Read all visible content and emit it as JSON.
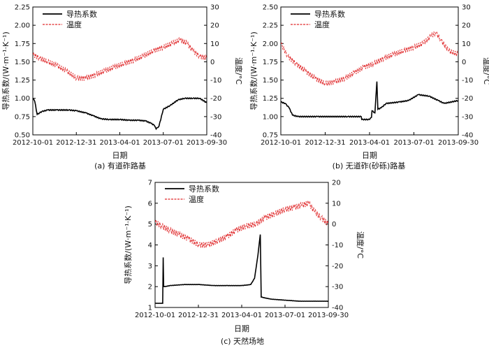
{
  "colors": {
    "conductivity": "#000000",
    "temperature": "#e0292b",
    "axis": "#000000"
  },
  "chart_data": [
    {
      "type": "line",
      "caption": "(a) 有道砟路基",
      "xlabel": "日期",
      "ylabel_left": "导热系数/(W·m⁻¹·K⁻¹)",
      "ylabel_right": "温度/°C",
      "x_ticks": [
        "2012-10-01",
        "2012-12-31",
        "2013-04-01",
        "2013-07-01",
        "2013-09-30"
      ],
      "y_left_range": [
        0.5,
        2.25
      ],
      "y_left_ticks": [
        "0.50",
        "0.75",
        "1.00",
        "1.25",
        "1.50",
        "1.75",
        "2.00",
        "2.25"
      ],
      "y_right_range": [
        -40,
        30
      ],
      "y_right_ticks": [
        "-40",
        "-30",
        "-20",
        "-10",
        "0",
        "10",
        "20",
        "30"
      ],
      "legend": [
        "导热系数",
        "温度"
      ],
      "legend_position": "top-left",
      "series": [
        {
          "name": "导热系数",
          "axis": "left",
          "style": "solid",
          "x": [
            "2012-10-01",
            "2012-10-05",
            "2012-10-10",
            "2012-10-15",
            "2012-10-20",
            "2012-11-01",
            "2012-11-20",
            "2012-12-15",
            "2012-12-31",
            "2013-01-20",
            "2013-02-05",
            "2013-02-20",
            "2013-03-10",
            "2013-04-01",
            "2013-04-20",
            "2013-05-10",
            "2013-05-25",
            "2013-06-05",
            "2013-06-12",
            "2013-06-16",
            "2013-06-22",
            "2013-07-01",
            "2013-07-15",
            "2013-08-01",
            "2013-08-15",
            "2013-09-01",
            "2013-09-15",
            "2013-09-30"
          ],
          "values": [
            1.0,
            0.96,
            0.78,
            0.8,
            0.82,
            0.84,
            0.84,
            0.84,
            0.83,
            0.8,
            0.76,
            0.72,
            0.71,
            0.71,
            0.7,
            0.7,
            0.69,
            0.66,
            0.63,
            0.58,
            0.62,
            0.85,
            0.9,
            0.98,
            1.0,
            1.0,
            1.0,
            0.94
          ]
        },
        {
          "name": "温度",
          "axis": "right",
          "style": "dashed",
          "x": [
            "2012-10-01",
            "2012-10-15",
            "2012-11-01",
            "2012-11-20",
            "2012-12-10",
            "2013-01-01",
            "2013-01-20",
            "2013-02-10",
            "2013-03-01",
            "2013-03-20",
            "2013-04-10",
            "2013-05-01",
            "2013-05-20",
            "2013-06-10",
            "2013-07-01",
            "2013-07-20",
            "2013-08-05",
            "2013-08-20",
            "2013-09-01",
            "2013-09-15",
            "2013-09-30"
          ],
          "values": [
            4,
            2,
            0,
            -2,
            -5,
            -9,
            -9,
            -7,
            -5,
            -3,
            -1,
            1,
            3,
            6,
            8,
            10,
            12,
            10,
            6,
            3,
            2
          ]
        }
      ]
    },
    {
      "type": "line",
      "caption": "(b) 无道砟(砂砾)路基",
      "xlabel": "日期",
      "ylabel_left": "导热系数/(W·m⁻¹·K⁻¹)",
      "ylabel_right": "温度/°C",
      "x_ticks": [
        "2012-10-01",
        "2012-12-31",
        "2013-04-01",
        "2013-07-01",
        "2013-09-30"
      ],
      "y_left_range": [
        0.75,
        2.5
      ],
      "y_left_ticks": [
        "0.75",
        "1.00",
        "1.25",
        "1.50",
        "1.75",
        "2.00",
        "2.25",
        "2.50"
      ],
      "y_right_range": [
        -40,
        30
      ],
      "y_right_ticks": [
        "-40",
        "-30",
        "-20",
        "-10",
        "0",
        "10",
        "20",
        "30"
      ],
      "legend": [
        "导热系数",
        "温度"
      ],
      "legend_position": "top-left",
      "series": [
        {
          "name": "导热系数",
          "axis": "left",
          "style": "solid",
          "x": [
            "2012-10-01",
            "2012-10-10",
            "2012-10-18",
            "2012-10-25",
            "2012-11-05",
            "2012-12-15",
            "2013-02-15",
            "2013-03-15",
            "2013-03-16",
            "2013-04-01",
            "2013-04-05",
            "2013-04-06",
            "2013-04-12",
            "2013-04-16",
            "2013-04-18",
            "2013-04-25",
            "2013-05-05",
            "2013-06-01",
            "2013-06-20",
            "2013-07-10",
            "2013-08-01",
            "2013-08-20",
            "2013-09-01",
            "2013-09-30"
          ],
          "values": [
            1.2,
            1.18,
            1.12,
            1.02,
            1.0,
            1.0,
            1.0,
            1.0,
            0.96,
            0.96,
            0.99,
            1.08,
            1.05,
            1.48,
            1.1,
            1.12,
            1.18,
            1.2,
            1.22,
            1.3,
            1.28,
            1.22,
            1.18,
            1.22
          ]
        },
        {
          "name": "温度",
          "axis": "right",
          "style": "dashed",
          "x": [
            "2012-10-01",
            "2012-10-15",
            "2012-11-01",
            "2012-11-20",
            "2012-12-10",
            "2012-12-31",
            "2013-01-20",
            "2013-02-10",
            "2013-03-01",
            "2013-03-20",
            "2013-04-10",
            "2013-05-01",
            "2013-05-20",
            "2013-06-10",
            "2013-07-01",
            "2013-07-20",
            "2013-08-05",
            "2013-08-15",
            "2013-08-25",
            "2013-09-10",
            "2013-09-30"
          ],
          "values": [
            10,
            3,
            -1,
            -5,
            -9,
            -12,
            -11,
            -9,
            -6,
            -3,
            -1,
            2,
            4,
            6,
            8,
            10,
            14,
            16,
            12,
            6,
            4
          ]
        }
      ]
    },
    {
      "type": "line",
      "caption": "(c) 天然场地",
      "xlabel": "日期",
      "ylabel_left": "导热系数/(W·m⁻¹·K⁻¹)",
      "ylabel_right": "温度/°C",
      "x_ticks": [
        "2012-10-01",
        "2012-12-31",
        "2013-04-01",
        "2013-07-01",
        "2013-09-30"
      ],
      "y_left_range": [
        1,
        7
      ],
      "y_left_ticks": [
        "1",
        "2",
        "3",
        "4",
        "5",
        "6",
        "7"
      ],
      "y_right_range": [
        -40,
        20
      ],
      "y_right_ticks": [
        "-40",
        "-30",
        "-20",
        "-10",
        "0",
        "10",
        "20"
      ],
      "legend": [
        "导热系数",
        "温度"
      ],
      "legend_position": "top-left",
      "series": [
        {
          "name": "导热系数",
          "axis": "left",
          "style": "solid",
          "x": [
            "2012-10-01",
            "2012-10-17",
            "2012-10-18",
            "2012-10-19",
            "2012-10-22",
            "2012-11-01",
            "2012-12-01",
            "2013-01-01",
            "2013-02-01",
            "2013-03-01",
            "2013-04-01",
            "2013-04-20",
            "2013-04-28",
            "2013-05-05",
            "2013-05-10",
            "2013-05-12",
            "2013-06-01",
            "2013-07-01",
            "2013-08-01",
            "2013-09-01",
            "2013-09-30"
          ],
          "values": [
            1.2,
            1.2,
            3.4,
            2.0,
            2.0,
            2.05,
            2.1,
            2.1,
            2.05,
            2.05,
            2.05,
            2.1,
            2.4,
            3.5,
            4.5,
            1.5,
            1.4,
            1.35,
            1.3,
            1.3,
            1.3
          ]
        },
        {
          "name": "温度",
          "axis": "right",
          "style": "dashed",
          "x": [
            "2012-10-01",
            "2012-10-15",
            "2012-11-01",
            "2012-11-20",
            "2012-12-10",
            "2013-01-01",
            "2013-01-20",
            "2013-02-10",
            "2013-03-01",
            "2013-03-20",
            "2013-04-10",
            "2013-05-01",
            "2013-05-20",
            "2013-06-10",
            "2013-07-01",
            "2013-07-20",
            "2013-08-05",
            "2013-08-20",
            "2013-09-01",
            "2013-09-15",
            "2013-09-30"
          ],
          "values": [
            1,
            -1,
            -3,
            -5,
            -7,
            -10,
            -10,
            -8,
            -6,
            -3,
            -1,
            0,
            3,
            5,
            7,
            8,
            9,
            10,
            6,
            3,
            0
          ]
        }
      ]
    }
  ]
}
